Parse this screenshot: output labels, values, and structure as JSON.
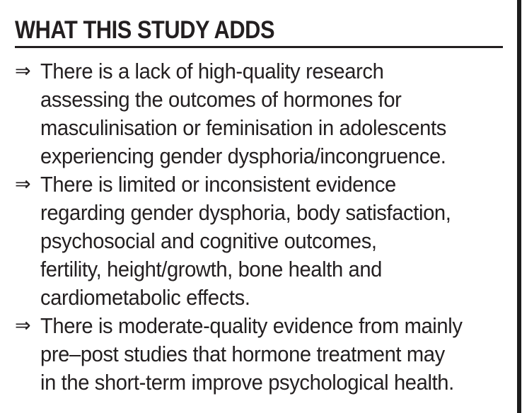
{
  "header": {
    "title": "WHAT THIS STUDY ADDS"
  },
  "bullets": [
    {
      "marker": "⇒",
      "lines": [
        "There is a lack of high-quality research",
        "assessing the outcomes of hormones for",
        "masculinisation or feminisation in adolescents",
        "experiencing gender dysphoria/incongruence."
      ]
    },
    {
      "marker": "⇒",
      "lines": [
        "There is limited or inconsistent evidence",
        "regarding gender dysphoria, body satisfaction,",
        "psychosocial and cognitive outcomes,",
        "fertility, height/growth, bone health and",
        "cardiometabolic effects."
      ]
    },
    {
      "marker": "⇒",
      "lines": [
        "There is moderate-quality evidence from mainly",
        "pre–post studies that hormone treatment may",
        "in the short-term improve psychological health."
      ]
    }
  ],
  "colors": {
    "text": "#231f20",
    "border": "#1c1c1c",
    "background": "#ffffff"
  }
}
